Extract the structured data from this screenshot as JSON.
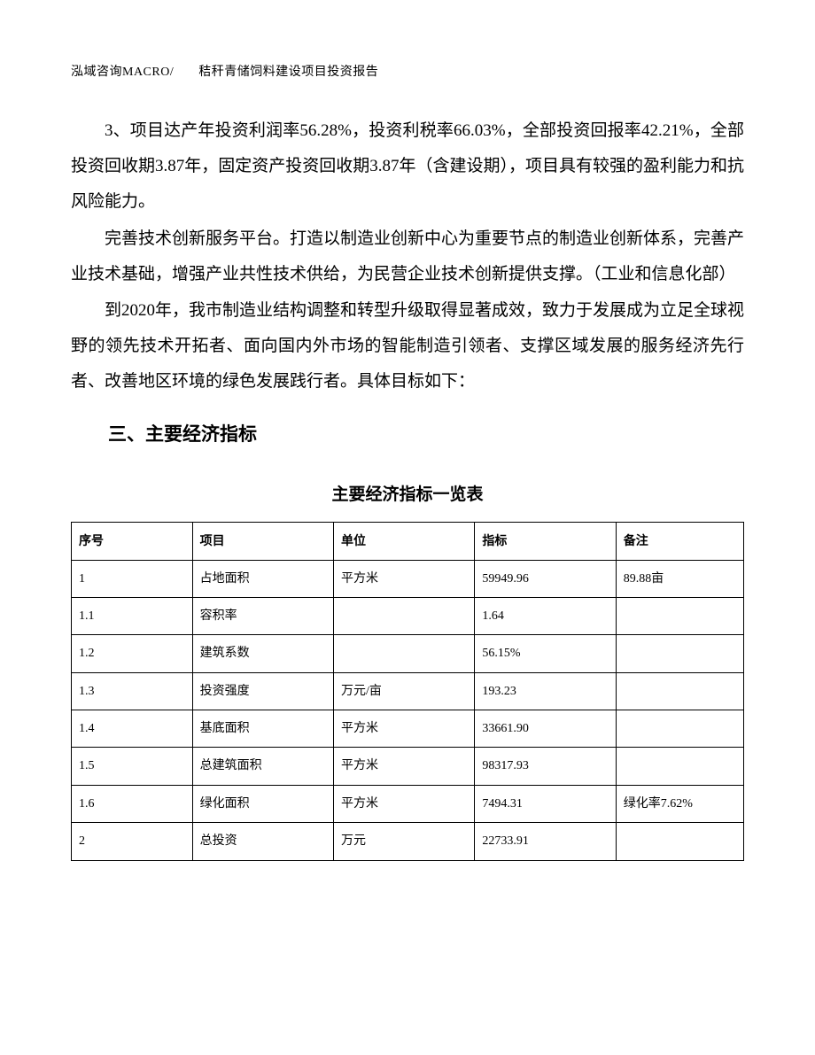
{
  "header": {
    "company": "泓域咨询MACRO/",
    "doc_title": "秸秆青储饲料建设项目投资报告"
  },
  "paragraphs": {
    "p1": "3、项目达产年投资利润率56.28%，投资利税率66.03%，全部投资回报率42.21%，全部投资回收期3.87年，固定资产投资回收期3.87年（含建设期），项目具有较强的盈利能力和抗风险能力。",
    "p2": "完善技术创新服务平台。打造以制造业创新中心为重要节点的制造业创新体系，完善产业技术基础，增强产业共性技术供给，为民营企业技术创新提供支撑。（工业和信息化部）",
    "p3": "到2020年，我市制造业结构调整和转型升级取得显著成效，致力于发展成为立足全球视野的领先技术开拓者、面向国内外市场的智能制造引领者、支撑区域发展的服务经济先行者、改善地区环境的绿色发展践行者。具体目标如下：",
    "section_heading": "三、主要经济指标",
    "table_title": "主要经济指标一览表"
  },
  "table": {
    "columns": [
      "序号",
      "项目",
      "单位",
      "指标",
      "备注"
    ],
    "rows": [
      [
        "1",
        "占地面积",
        "平方米",
        "59949.96",
        "89.88亩"
      ],
      [
        "1.1",
        "容积率",
        "",
        "1.64",
        ""
      ],
      [
        "1.2",
        "建筑系数",
        "",
        "56.15%",
        ""
      ],
      [
        "1.3",
        "投资强度",
        "万元/亩",
        "193.23",
        ""
      ],
      [
        "1.4",
        "基底面积",
        "平方米",
        "33661.90",
        ""
      ],
      [
        "1.5",
        "总建筑面积",
        "平方米",
        "98317.93",
        ""
      ],
      [
        "1.6",
        "绿化面积",
        "平方米",
        "7494.31",
        "绿化率7.62%"
      ],
      [
        "2",
        "总投资",
        "万元",
        "22733.91",
        ""
      ]
    ]
  }
}
